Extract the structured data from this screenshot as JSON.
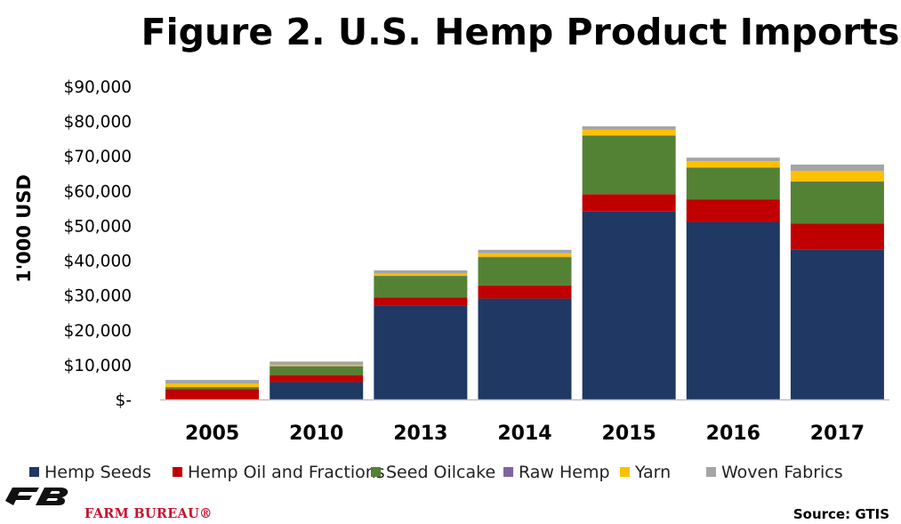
{
  "colors": {
    "hemp_seeds": "#1f3864",
    "hemp_oil": "#c00000",
    "seed_oilcake": "#548235",
    "raw_hemp": "#8064a2",
    "yarn": "#ffc000",
    "woven": "#a5a5a5",
    "brand_red": "#c8102e",
    "axis_line": "#bfbfbf"
  },
  "chart_data": {
    "type": "bar",
    "stacked": true,
    "title": "Figure 2. U.S. Hemp Product Imports",
    "ylabel": "1'000 USD",
    "xlabel": "",
    "categories": [
      "2005",
      "2010",
      "2013",
      "2014",
      "2015",
      "2016",
      "2017"
    ],
    "ylim": [
      0,
      90000
    ],
    "yticks": [
      0,
      10000,
      20000,
      30000,
      40000,
      50000,
      60000,
      70000,
      80000,
      90000
    ],
    "ytick_labels": [
      "$-",
      "$10,000",
      "$20,000",
      "$30,000",
      "$40,000",
      "$50,000",
      "$60,000",
      "$70,000",
      "$80,000",
      "$90,000"
    ],
    "grid": false,
    "legend_position": "bottom",
    "series": [
      {
        "name": "Hemp Seeds",
        "color_key": "hemp_seeds",
        "values": [
          0,
          5000,
          27000,
          29000,
          54000,
          51000,
          43000
        ]
      },
      {
        "name": "Hemp Oil and Fractions",
        "color_key": "hemp_oil",
        "values": [
          3000,
          2000,
          2300,
          3800,
          5000,
          6500,
          7500
        ]
      },
      {
        "name": "Seed Oilcake",
        "color_key": "seed_oilcake",
        "values": [
          500,
          2500,
          6200,
          8000,
          16700,
          9000,
          12000
        ]
      },
      {
        "name": "Raw Hemp",
        "color_key": "raw_hemp",
        "values": [
          100,
          100,
          100,
          200,
          200,
          200,
          200
        ]
      },
      {
        "name": "Yarn",
        "color_key": "yarn",
        "values": [
          1000,
          300,
          500,
          1000,
          1600,
          1800,
          3000
        ]
      },
      {
        "name": "Woven Fabrics",
        "color_key": "woven",
        "values": [
          1000,
          1000,
          1000,
          1000,
          1000,
          1000,
          1800
        ]
      }
    ]
  },
  "footer": {
    "brand_name": "FARM BUREAU®",
    "source": "Source: GTIS"
  }
}
